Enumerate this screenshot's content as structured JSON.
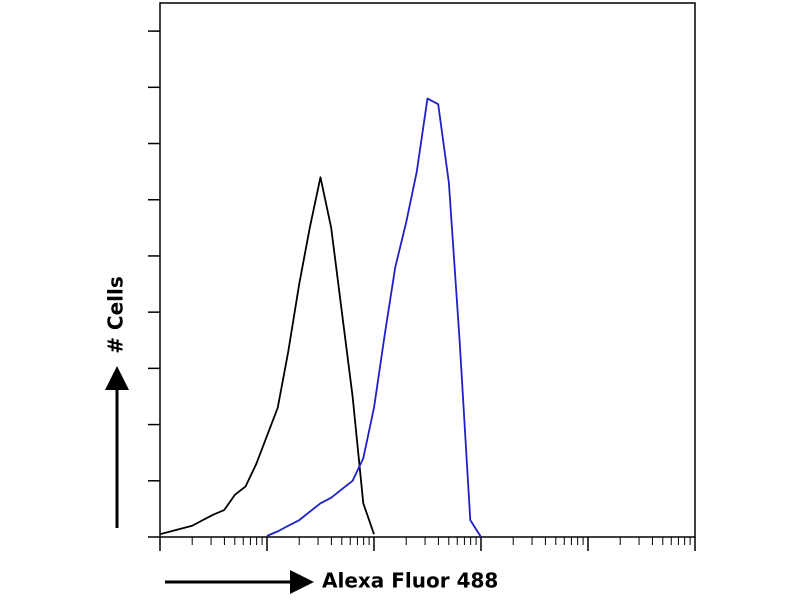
{
  "chart_data": {
    "type": "line",
    "x_label": "Alexa Fluor 488",
    "y_label": "# Cells",
    "x": [
      1,
      1.26,
      1.58,
      2,
      2.51,
      3.16,
      3.98,
      5.01,
      6.31,
      7.94,
      10,
      12.6,
      15.8,
      20,
      25.1,
      31.6,
      39.8,
      50.1,
      63.1,
      79.4,
      100,
      126,
      158,
      200,
      251,
      316,
      398,
      501,
      631,
      794,
      1000
    ],
    "series": [
      {
        "color": "#000000",
        "values": [
          0.05,
          0.1,
          0.15,
          0.2,
          0.3,
          0.4,
          0.48,
          0.75,
          0.9,
          1.3,
          1.8,
          2.3,
          3.3,
          4.5,
          5.5,
          6.4,
          5.5,
          4.0,
          2.5,
          0.6,
          0.05,
          null,
          null,
          null,
          null,
          null,
          null,
          null,
          null,
          null,
          null
        ]
      },
      {
        "color": "#1f1fc8",
        "values": [
          null,
          null,
          null,
          null,
          null,
          null,
          null,
          null,
          null,
          null,
          0.02,
          0.1,
          0.2,
          0.3,
          0.45,
          0.6,
          0.7,
          0.85,
          1.0,
          1.4,
          2.3,
          3.6,
          4.8,
          5.6,
          6.5,
          7.8,
          7.7,
          6.3,
          3.5,
          0.3,
          0
        ]
      }
    ],
    "log_x": true,
    "xlim": [
      1,
      100000
    ],
    "xticks": [
      1,
      10,
      100,
      1000,
      10000,
      100000
    ],
    "xminorticks": [
      2,
      3,
      4,
      5,
      6,
      7,
      8,
      9,
      20,
      30,
      40,
      50,
      60,
      70,
      80,
      90,
      200,
      300,
      400,
      500,
      600,
      700,
      800,
      900,
      2000,
      3000,
      4000,
      5000,
      6000,
      7000,
      8000,
      9000,
      20000,
      30000,
      40000,
      50000,
      60000,
      70000,
      80000,
      90000
    ],
    "ylim": [
      0,
      9.5
    ],
    "yticks": [
      0,
      1,
      2,
      3,
      4,
      5,
      6,
      7,
      8,
      9
    ]
  }
}
